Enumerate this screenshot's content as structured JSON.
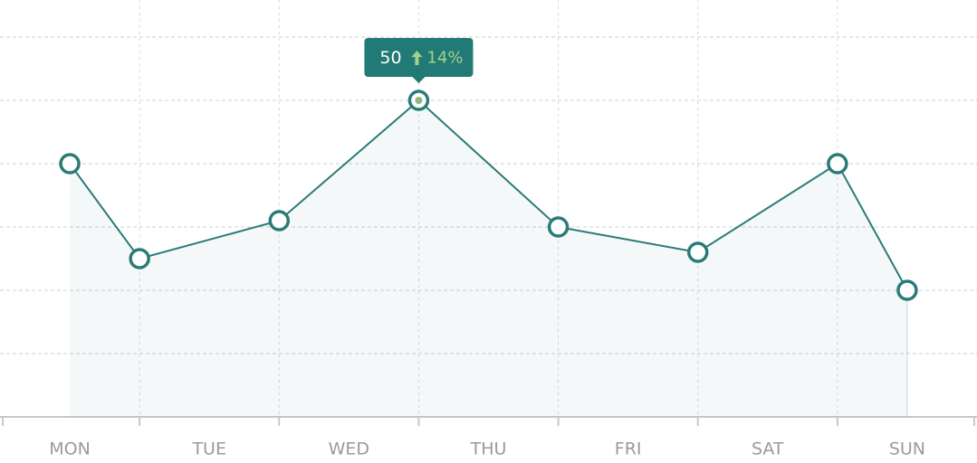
{
  "chart_data": {
    "type": "line",
    "categories": [
      "MON",
      "TUE",
      "WED",
      "THU",
      "FRI",
      "SAT",
      "SUN"
    ],
    "x": [
      0.5,
      1,
      2,
      3,
      4,
      5,
      6,
      6.5
    ],
    "series": [
      {
        "color": "#2a7b78",
        "values": [
          40,
          25,
          31,
          50,
          30,
          26,
          40,
          20
        ]
      }
    ],
    "xlim": [
      0,
      7
    ],
    "xticks": [
      0,
      1,
      2,
      3,
      4,
      5,
      6,
      7
    ],
    "ylim": [
      0,
      60
    ],
    "yticks": [
      0,
      10,
      20,
      30,
      40,
      50,
      60
    ],
    "grid": true,
    "tooltip": {
      "point": 3,
      "change": 14,
      "change_label": "14%"
    }
  }
}
